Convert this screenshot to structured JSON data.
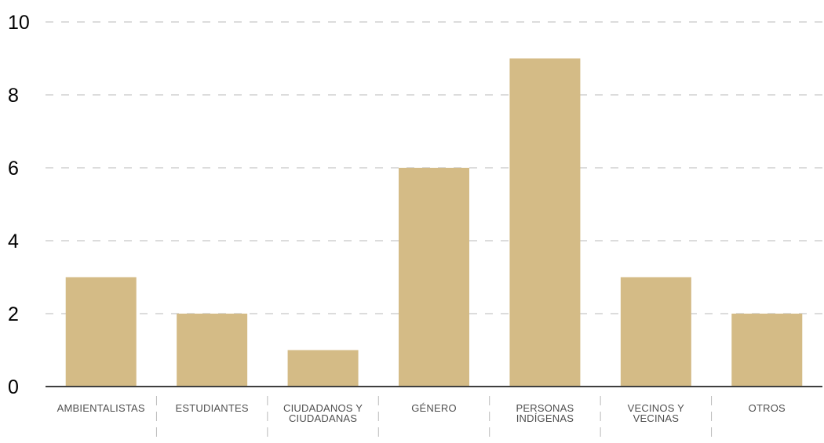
{
  "chart_data": {
    "type": "bar",
    "categories": [
      [
        "AMBIENTALISTAS"
      ],
      [
        "ESTUDIANTES"
      ],
      [
        "CIUDADANOS Y",
        "CIUDADANAS"
      ],
      [
        "GÉNERO"
      ],
      [
        "PERSONAS",
        "INDÍGENAS"
      ],
      [
        "VECINOS Y",
        "VECINAS"
      ],
      [
        "OTROS"
      ]
    ],
    "values": [
      3,
      2,
      1,
      6,
      9,
      3,
      2
    ],
    "ylim": [
      0,
      10
    ],
    "yticks": [
      0,
      2,
      4,
      6,
      8,
      10
    ],
    "title": "",
    "xlabel": "",
    "ylabel": "",
    "grid": true,
    "bar_color": "#d4bb86",
    "grid_color": "#b9b9b9",
    "axis_color": "#3f3f3f",
    "tick_label_color": "#505050"
  }
}
